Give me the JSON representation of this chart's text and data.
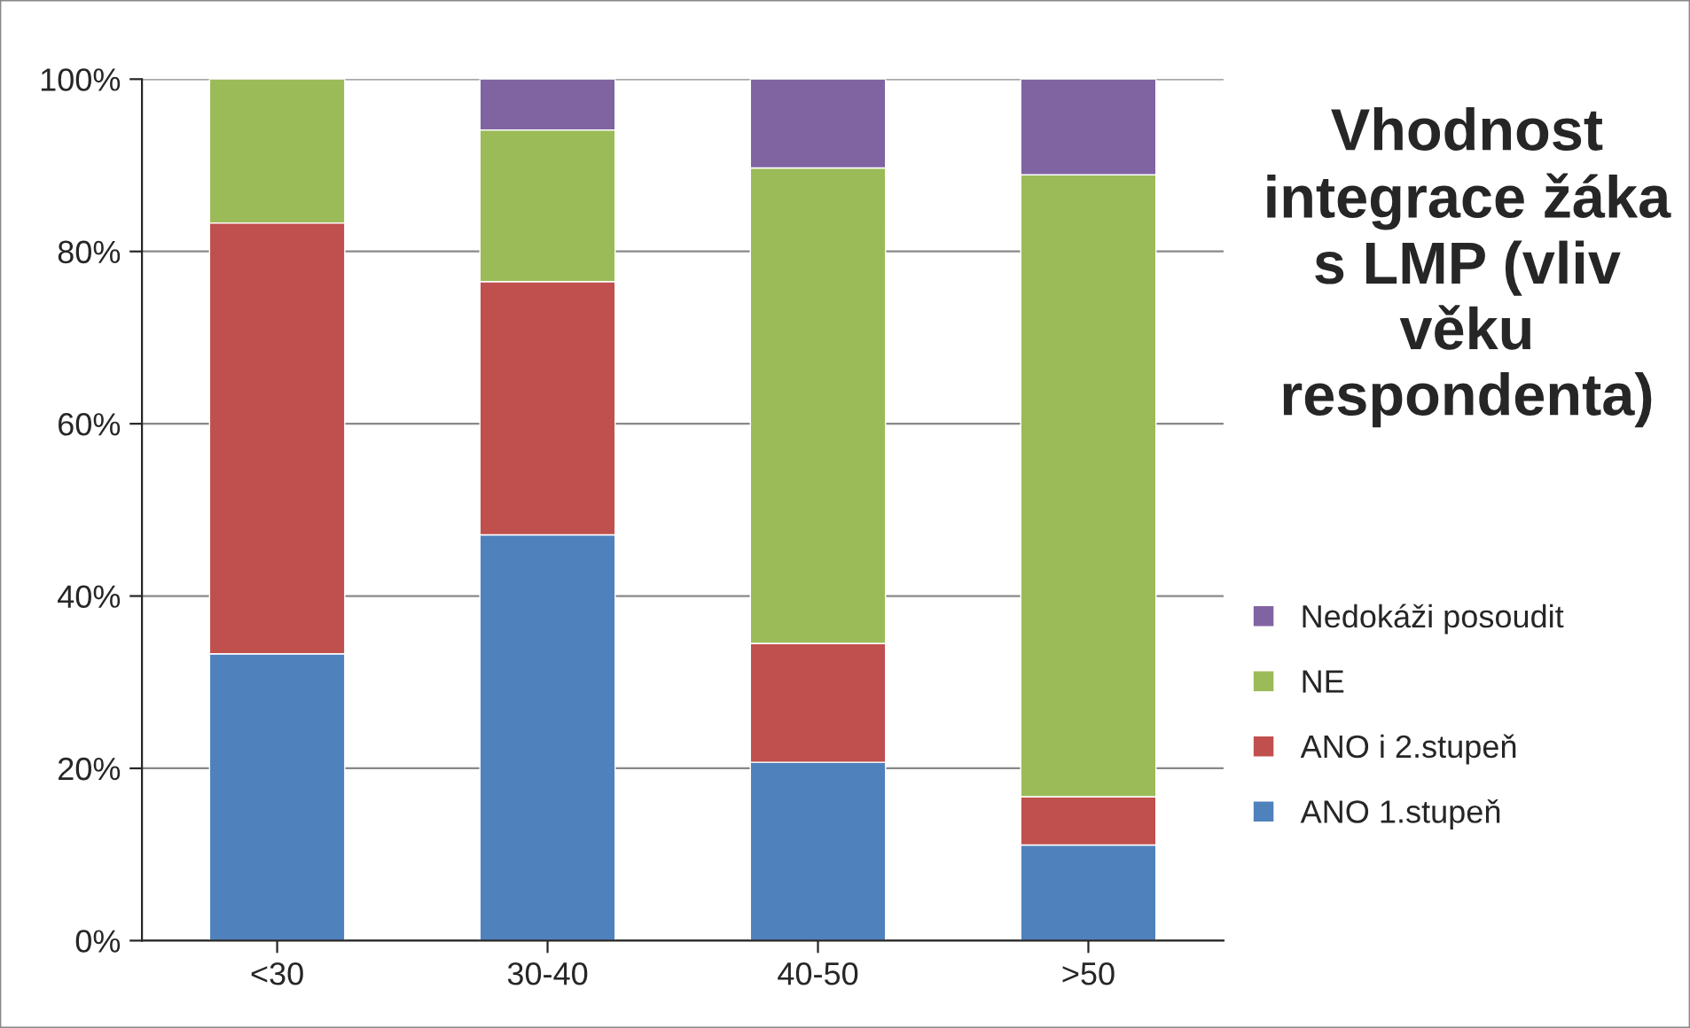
{
  "chart_data": {
    "type": "bar",
    "stacked": true,
    "title": "Vhodnost integrace žáka s LMP (vliv věku respondenta)",
    "categories": [
      "<30",
      "30-40",
      "40-50",
      ">50"
    ],
    "series": [
      {
        "name": "ANO 1.stupeň",
        "color": "#4f81bd",
        "values": [
          33.3,
          47.1,
          20.7,
          11.1
        ]
      },
      {
        "name": "ANO i 2.stupeň",
        "color": "#c0504d",
        "values": [
          50.0,
          29.4,
          13.8,
          5.6
        ]
      },
      {
        "name": "NE",
        "color": "#9bbb59",
        "values": [
          16.7,
          17.6,
          55.2,
          72.2
        ]
      },
      {
        "name": "Nedokáži posoudit",
        "color": "#8064a2",
        "values": [
          null,
          5.9,
          10.3,
          11.1
        ]
      }
    ],
    "ylim": [
      0,
      100
    ],
    "yticks": [
      {
        "value": 0,
        "label": "0%"
      },
      {
        "value": 20,
        "label": "20%"
      },
      {
        "value": 40,
        "label": "40%"
      },
      {
        "value": 60,
        "label": "60%"
      },
      {
        "value": 80,
        "label": "80%"
      },
      {
        "value": 100,
        "label": "100%"
      }
    ],
    "grid": "y",
    "legend": "right"
  }
}
